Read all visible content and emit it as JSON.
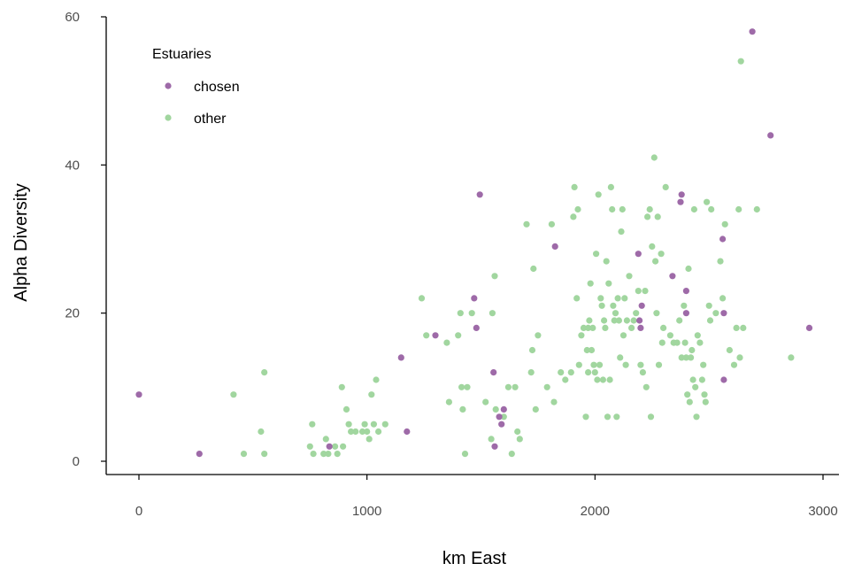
{
  "chart_data": {
    "type": "scatter",
    "title": "",
    "xlabel": "km East",
    "ylabel": "Alpha Diversity",
    "xlim": [
      -150,
      3050
    ],
    "ylim": [
      -2,
      61
    ],
    "xticks": [
      0,
      1000,
      2000,
      3000
    ],
    "yticks": [
      0,
      20,
      40,
      60
    ],
    "grid": false,
    "legend": {
      "title": "Estuaries",
      "position": "top-left"
    },
    "series": [
      {
        "name": "chosen",
        "color": "#9e6aa8",
        "points": [
          [
            0,
            9
          ],
          [
            265,
            1
          ],
          [
            835,
            2
          ],
          [
            1150,
            14
          ],
          [
            1175,
            4
          ],
          [
            1300,
            17
          ],
          [
            1470,
            22
          ],
          [
            1480,
            18
          ],
          [
            1495,
            36
          ],
          [
            1555,
            12
          ],
          [
            1580,
            6
          ],
          [
            1590,
            5
          ],
          [
            1600,
            7
          ],
          [
            1560,
            2
          ],
          [
            1825,
            29
          ],
          [
            2190,
            28
          ],
          [
            2195,
            19
          ],
          [
            2200,
            18
          ],
          [
            2205,
            21
          ],
          [
            2340,
            25
          ],
          [
            2375,
            35
          ],
          [
            2380,
            36
          ],
          [
            2400,
            23
          ],
          [
            2400,
            20
          ],
          [
            2560,
            30
          ],
          [
            2565,
            20
          ],
          [
            2565,
            11
          ],
          [
            2690,
            58
          ],
          [
            2770,
            44
          ],
          [
            2940,
            18
          ]
        ]
      },
      {
        "name": "other",
        "color": "#a1d69f",
        "points": [
          [
            415,
            9
          ],
          [
            460,
            1
          ],
          [
            535,
            4
          ],
          [
            550,
            12
          ],
          [
            550,
            1
          ],
          [
            750,
            2
          ],
          [
            760,
            5
          ],
          [
            765,
            1
          ],
          [
            810,
            1
          ],
          [
            820,
            3
          ],
          [
            830,
            1
          ],
          [
            860,
            2
          ],
          [
            870,
            1
          ],
          [
            890,
            10
          ],
          [
            895,
            2
          ],
          [
            910,
            7
          ],
          [
            920,
            5
          ],
          [
            930,
            4
          ],
          [
            950,
            4
          ],
          [
            980,
            4
          ],
          [
            990,
            5
          ],
          [
            1000,
            4
          ],
          [
            1010,
            3
          ],
          [
            1020,
            9
          ],
          [
            1030,
            5
          ],
          [
            1040,
            11
          ],
          [
            1050,
            4
          ],
          [
            1080,
            5
          ],
          [
            1240,
            22
          ],
          [
            1260,
            17
          ],
          [
            1350,
            16
          ],
          [
            1360,
            8
          ],
          [
            1400,
            17
          ],
          [
            1410,
            20
          ],
          [
            1415,
            10
          ],
          [
            1420,
            7
          ],
          [
            1430,
            1
          ],
          [
            1440,
            10
          ],
          [
            1460,
            20
          ],
          [
            1520,
            8
          ],
          [
            1550,
            20
          ],
          [
            1560,
            25
          ],
          [
            1545,
            3
          ],
          [
            1565,
            7
          ],
          [
            1600,
            6
          ],
          [
            1620,
            10
          ],
          [
            1635,
            1
          ],
          [
            1650,
            10
          ],
          [
            1660,
            4
          ],
          [
            1670,
            3
          ],
          [
            1700,
            32
          ],
          [
            1720,
            12
          ],
          [
            1725,
            15
          ],
          [
            1730,
            26
          ],
          [
            1740,
            7
          ],
          [
            1750,
            17
          ],
          [
            1790,
            10
          ],
          [
            1810,
            32
          ],
          [
            1820,
            8
          ],
          [
            1850,
            12
          ],
          [
            1870,
            11
          ],
          [
            1895,
            12
          ],
          [
            1905,
            33
          ],
          [
            1910,
            37
          ],
          [
            1920,
            22
          ],
          [
            1925,
            34
          ],
          [
            1930,
            13
          ],
          [
            1940,
            17
          ],
          [
            1950,
            18
          ],
          [
            1960,
            6
          ],
          [
            1965,
            15
          ],
          [
            1970,
            18
          ],
          [
            1970,
            12
          ],
          [
            1975,
            19
          ],
          [
            1980,
            24
          ],
          [
            1985,
            15
          ],
          [
            1990,
            18
          ],
          [
            1995,
            13
          ],
          [
            2000,
            12
          ],
          [
            2005,
            28
          ],
          [
            2010,
            11
          ],
          [
            2015,
            36
          ],
          [
            2020,
            13
          ],
          [
            2025,
            22
          ],
          [
            2030,
            21
          ],
          [
            2035,
            11
          ],
          [
            2040,
            19
          ],
          [
            2045,
            18
          ],
          [
            2050,
            27
          ],
          [
            2055,
            6
          ],
          [
            2060,
            24
          ],
          [
            2065,
            11
          ],
          [
            2070,
            37
          ],
          [
            2075,
            34
          ],
          [
            2080,
            21
          ],
          [
            2085,
            19
          ],
          [
            2090,
            20
          ],
          [
            2095,
            6
          ],
          [
            2100,
            22
          ],
          [
            2105,
            19
          ],
          [
            2110,
            14
          ],
          [
            2115,
            31
          ],
          [
            2120,
            34
          ],
          [
            2125,
            17
          ],
          [
            2130,
            22
          ],
          [
            2135,
            13
          ],
          [
            2140,
            19
          ],
          [
            2150,
            25
          ],
          [
            2160,
            18
          ],
          [
            2170,
            19
          ],
          [
            2180,
            20
          ],
          [
            2190,
            23
          ],
          [
            2200,
            13
          ],
          [
            2210,
            12
          ],
          [
            2220,
            23
          ],
          [
            2225,
            10
          ],
          [
            2230,
            33
          ],
          [
            2240,
            34
          ],
          [
            2245,
            6
          ],
          [
            2250,
            29
          ],
          [
            2260,
            41
          ],
          [
            2265,
            27
          ],
          [
            2270,
            20
          ],
          [
            2275,
            33
          ],
          [
            2280,
            13
          ],
          [
            2290,
            28
          ],
          [
            2295,
            16
          ],
          [
            2300,
            18
          ],
          [
            2310,
            37
          ],
          [
            2330,
            17
          ],
          [
            2345,
            16
          ],
          [
            2360,
            16
          ],
          [
            2370,
            19
          ],
          [
            2380,
            14
          ],
          [
            2390,
            21
          ],
          [
            2395,
            16
          ],
          [
            2400,
            14
          ],
          [
            2405,
            9
          ],
          [
            2410,
            26
          ],
          [
            2415,
            8
          ],
          [
            2420,
            14
          ],
          [
            2425,
            15
          ],
          [
            2430,
            11
          ],
          [
            2435,
            34
          ],
          [
            2440,
            10
          ],
          [
            2445,
            6
          ],
          [
            2450,
            17
          ],
          [
            2460,
            16
          ],
          [
            2470,
            11
          ],
          [
            2475,
            13
          ],
          [
            2480,
            9
          ],
          [
            2485,
            8
          ],
          [
            2490,
            35
          ],
          [
            2500,
            21
          ],
          [
            2505,
            19
          ],
          [
            2510,
            34
          ],
          [
            2530,
            20
          ],
          [
            2550,
            27
          ],
          [
            2560,
            22
          ],
          [
            2570,
            32
          ],
          [
            2590,
            15
          ],
          [
            2610,
            13
          ],
          [
            2620,
            18
          ],
          [
            2630,
            34
          ],
          [
            2635,
            14
          ],
          [
            2640,
            54
          ],
          [
            2650,
            18
          ],
          [
            2710,
            34
          ],
          [
            2860,
            14
          ]
        ]
      }
    ]
  }
}
